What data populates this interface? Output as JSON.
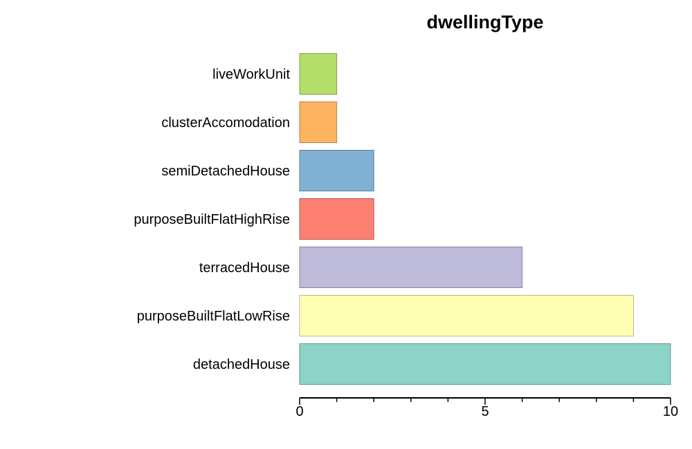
{
  "chart_data": {
    "type": "bar",
    "orientation": "horizontal",
    "title": "dwellingType",
    "xlabel": "",
    "ylabel": "",
    "categories": [
      "detachedHouse",
      "purposeBuiltFlatLowRise",
      "terracedHouse",
      "purposeBuiltFlatHighRise",
      "semiDetachedHouse",
      "clusterAccomodation",
      "liveWorkUnit"
    ],
    "values": [
      10,
      9,
      6,
      2,
      2,
      1,
      1
    ],
    "colors": [
      "#8dd3c7",
      "#ffffb3",
      "#bebada",
      "#fb8072",
      "#80b1d3",
      "#fdb462",
      "#b3de69"
    ],
    "xlim": [
      0,
      10
    ],
    "major_ticks": [
      0,
      5,
      10
    ],
    "minor_ticks": [
      1,
      2,
      3,
      4,
      6,
      7,
      8,
      9
    ],
    "grid": false,
    "legend": "none"
  }
}
